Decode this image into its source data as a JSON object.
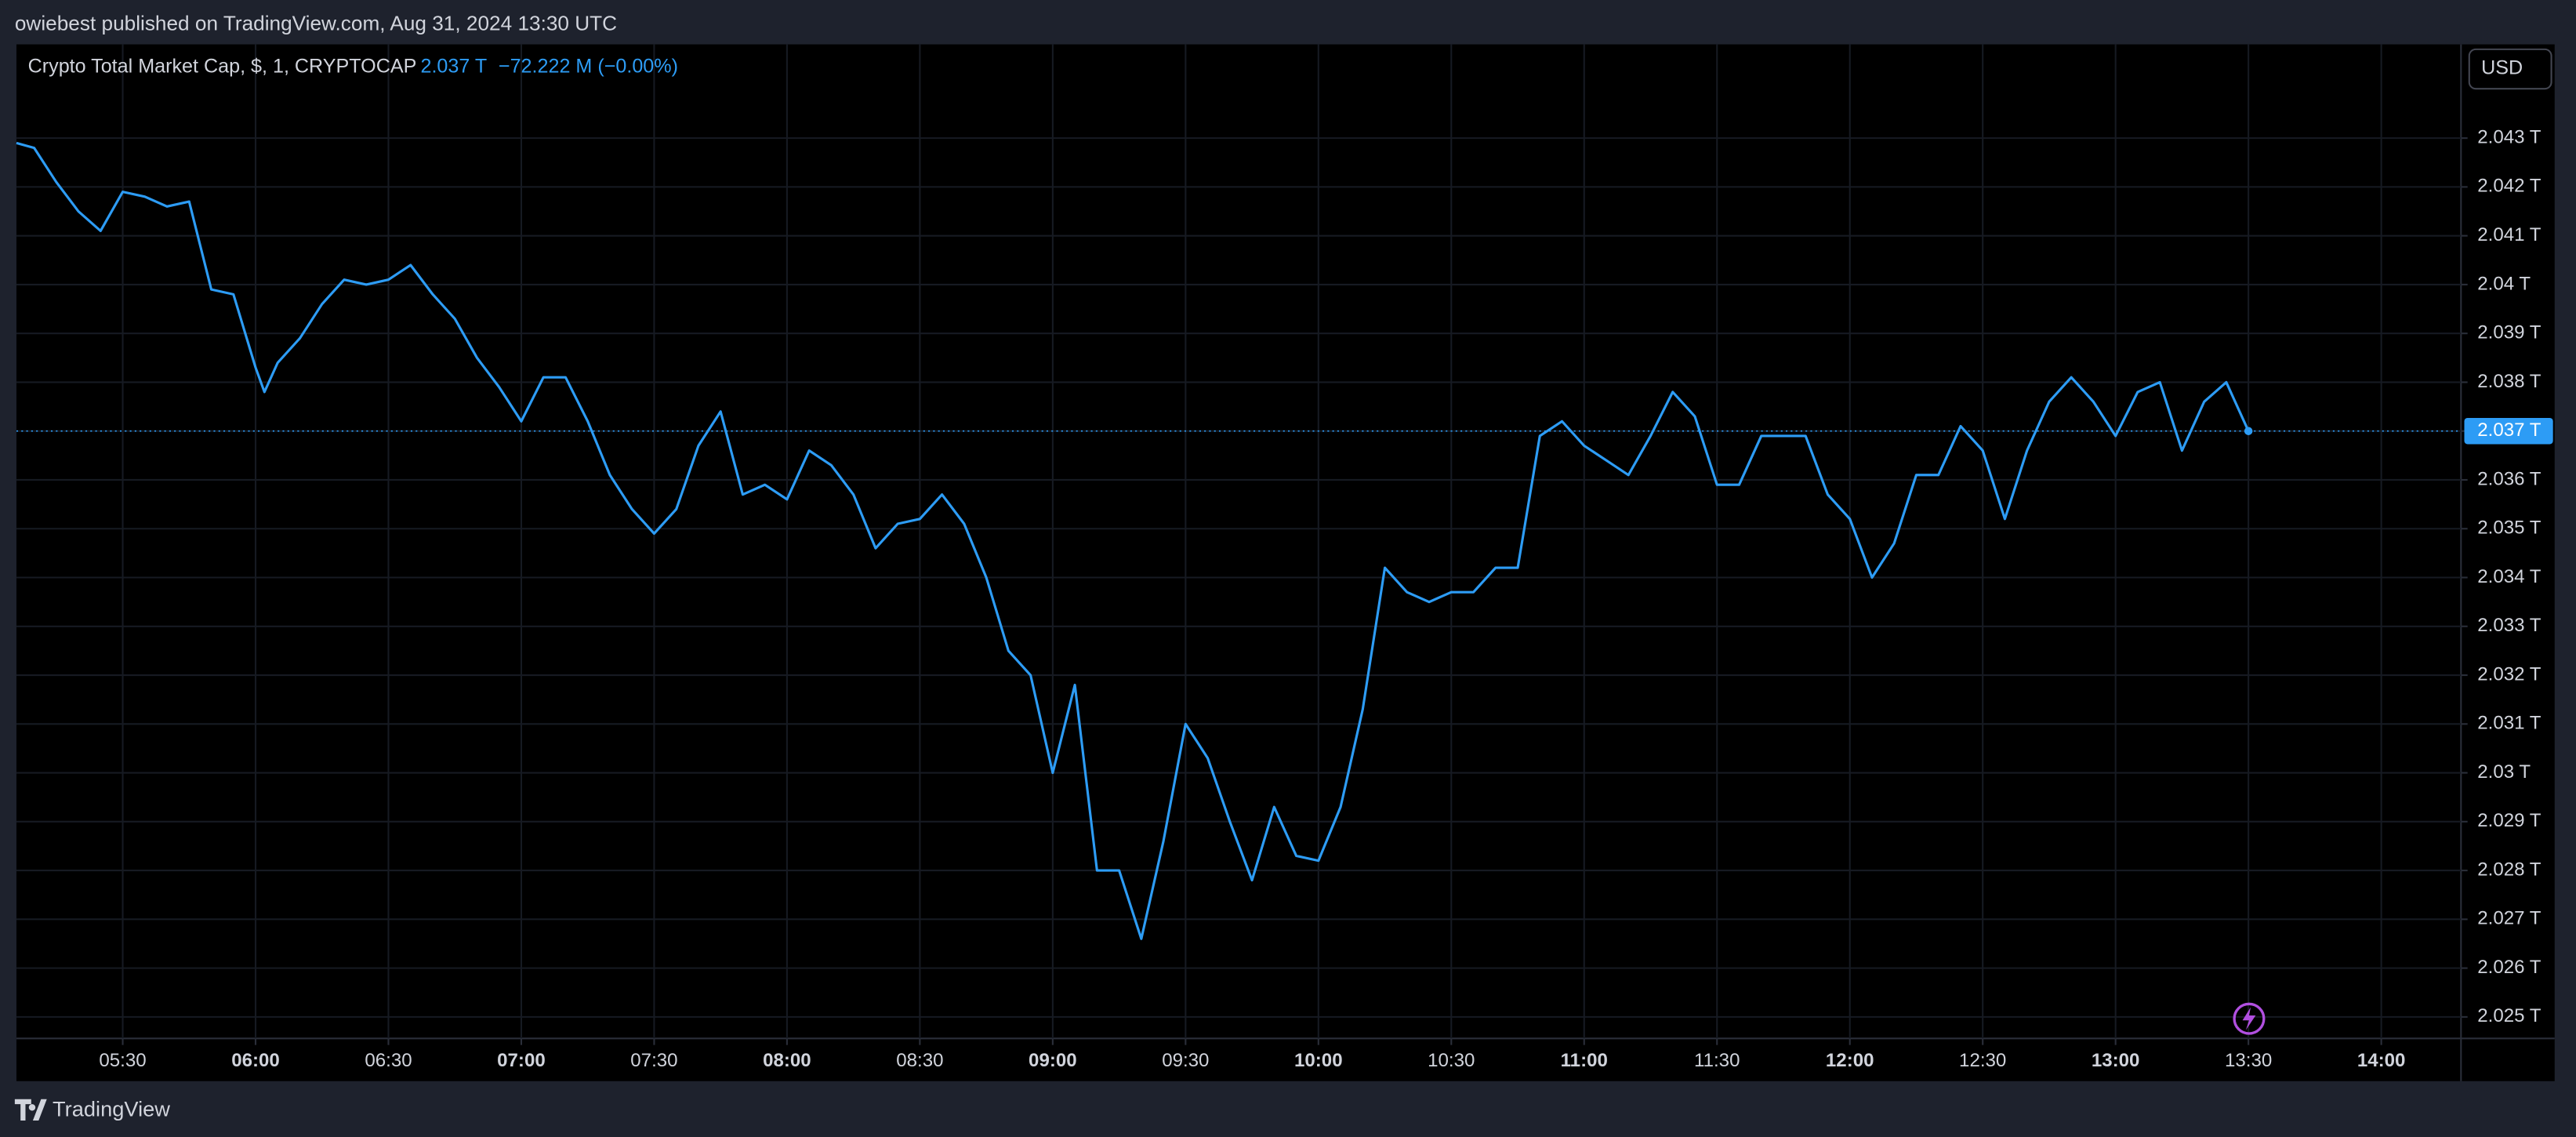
{
  "header": "owiebest published on TradingView.com, Aug 31, 2024 13:30 UTC",
  "footer": "TradingView",
  "currency": "USD",
  "chart_data": {
    "type": "line",
    "title": "Crypto Total Market Cap, $, 1, CRYPTOCAP",
    "last_value_label": "2.037 T",
    "change_label": "−72.222 M (−0.00%)",
    "price_label": "2.037 T",
    "color": "#2d9cf5",
    "grid": true,
    "x": [
      "05:06",
      "05:10",
      "05:15",
      "05:20",
      "05:25",
      "05:30",
      "05:35",
      "05:40",
      "05:45",
      "05:50",
      "05:55",
      "06:00",
      "06:02",
      "06:05",
      "06:10",
      "06:15",
      "06:20",
      "06:25",
      "06:30",
      "06:35",
      "06:40",
      "06:45",
      "06:50",
      "06:55",
      "07:00",
      "07:05",
      "07:10",
      "07:15",
      "07:20",
      "07:25",
      "07:30",
      "07:35",
      "07:40",
      "07:45",
      "07:50",
      "07:55",
      "08:00",
      "08:05",
      "08:10",
      "08:15",
      "08:20",
      "08:25",
      "08:30",
      "08:35",
      "08:40",
      "08:45",
      "08:50",
      "08:55",
      "09:00",
      "09:05",
      "09:10",
      "09:15",
      "09:20",
      "09:25",
      "09:30",
      "09:35",
      "09:40",
      "09:45",
      "09:50",
      "09:55",
      "10:00",
      "10:05",
      "10:10",
      "10:15",
      "10:20",
      "10:25",
      "10:30",
      "10:35",
      "10:40",
      "10:45",
      "10:50",
      "10:55",
      "11:00",
      "11:05",
      "11:10",
      "11:15",
      "11:20",
      "11:25",
      "11:30",
      "11:35",
      "11:40",
      "11:45",
      "11:50",
      "11:55",
      "12:00",
      "12:05",
      "12:10",
      "12:15",
      "12:20",
      "12:25",
      "12:30",
      "12:35",
      "12:40",
      "12:45",
      "12:50",
      "12:55",
      "13:00",
      "13:05",
      "13:10",
      "13:15",
      "13:20",
      "13:25",
      "13:30"
    ],
    "values": [
      2.0429,
      2.0428,
      2.0421,
      2.0415,
      2.0411,
      2.0419,
      2.0418,
      2.0416,
      2.0417,
      2.0399,
      2.0398,
      2.0383,
      2.0378,
      2.0384,
      2.0389,
      2.0396,
      2.0401,
      2.04,
      2.0401,
      2.0404,
      2.0398,
      2.0393,
      2.0385,
      2.0379,
      2.0372,
      2.0381,
      2.0381,
      2.0372,
      2.0361,
      2.0354,
      2.0349,
      2.0354,
      2.0367,
      2.0374,
      2.0357,
      2.0359,
      2.0356,
      2.0366,
      2.0363,
      2.0357,
      2.0346,
      2.0351,
      2.0352,
      2.0357,
      2.0351,
      2.034,
      2.0325,
      2.032,
      2.03,
      2.0318,
      2.028,
      2.028,
      2.0266,
      2.0286,
      2.031,
      2.0303,
      2.029,
      2.0278,
      2.0293,
      2.0283,
      2.0282,
      2.0293,
      2.0313,
      2.0342,
      2.0337,
      2.0335,
      2.0337,
      2.0337,
      2.0342,
      2.0342,
      2.0369,
      2.0372,
      2.0367,
      2.0364,
      2.0361,
      2.0369,
      2.0378,
      2.0373,
      2.0359,
      2.0359,
      2.0369,
      2.0369,
      2.0369,
      2.0357,
      2.0352,
      2.034,
      2.0347,
      2.0361,
      2.0361,
      2.0371,
      2.0366,
      2.0352,
      2.0366,
      2.0376,
      2.0381,
      2.0376,
      2.0369,
      2.0378,
      2.038,
      2.0366,
      2.0376,
      2.038,
      2.037
    ],
    "xlim": [
      "05:06",
      "14:18"
    ],
    "xticks": [
      "05:30",
      "06:00",
      "06:30",
      "07:00",
      "07:30",
      "08:00",
      "08:30",
      "09:00",
      "09:30",
      "10:00",
      "10:30",
      "11:00",
      "11:30",
      "12:00",
      "12:30",
      "13:00",
      "13:30",
      "14:00"
    ],
    "ylim": [
      2.02456,
      2.04492
    ],
    "yticks": [
      {
        "value": 2.025,
        "label": "2.025 T"
      },
      {
        "value": 2.026,
        "label": "2.026 T"
      },
      {
        "value": 2.027,
        "label": "2.027 T"
      },
      {
        "value": 2.028,
        "label": "2.028 T"
      },
      {
        "value": 2.029,
        "label": "2.029 T"
      },
      {
        "value": 2.03,
        "label": "2.03 T"
      },
      {
        "value": 2.031,
        "label": "2.031 T"
      },
      {
        "value": 2.032,
        "label": "2.032 T"
      },
      {
        "value": 2.033,
        "label": "2.033 T"
      },
      {
        "value": 2.034,
        "label": "2.034 T"
      },
      {
        "value": 2.035,
        "label": "2.035 T"
      },
      {
        "value": 2.036,
        "label": "2.036 T"
      },
      {
        "value": 2.037,
        "label": "2.037 T"
      },
      {
        "value": 2.038,
        "label": "2.038 T"
      },
      {
        "value": 2.039,
        "label": "2.039 T"
      },
      {
        "value": 2.04,
        "label": "2.04 T"
      },
      {
        "value": 2.041,
        "label": "2.041 T"
      },
      {
        "value": 2.042,
        "label": "2.042 T"
      },
      {
        "value": 2.043,
        "label": "2.043 T"
      }
    ]
  }
}
